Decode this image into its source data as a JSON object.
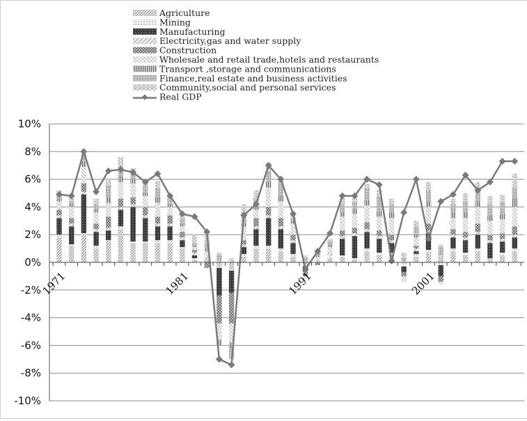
{
  "chart_data": {
    "type": "bar",
    "stacked": true,
    "title": "",
    "xlabel": "",
    "ylabel": "",
    "ylim": [
      -0.1,
      0.1
    ],
    "y_ticks": [
      "10%",
      "8%",
      "6%",
      "4%",
      "2%",
      "0%",
      "-2%",
      "-4%",
      "-6%",
      "-8%",
      "-10%"
    ],
    "x_tick_labels": [
      {
        "label": "1971",
        "year": 1971
      },
      {
        "label": "1981",
        "year": 1981
      },
      {
        "label": "1991",
        "year": 1991
      },
      {
        "label": "2001",
        "year": 2001
      }
    ],
    "years": [
      1971,
      1972,
      1973,
      1974,
      1975,
      1976,
      1977,
      1978,
      1979,
      1980,
      1981,
      1982,
      1983,
      1984,
      1985,
      1986,
      1987,
      1988,
      1989,
      1990,
      1991,
      1992,
      1993,
      1994,
      1995,
      1996,
      1997,
      1998,
      1999,
      2000,
      2001,
      2002,
      2003,
      2004,
      2005,
      2006,
      2007,
      2008
    ],
    "grid": true,
    "legend_position": "top",
    "series": [
      {
        "name": "Agriculture",
        "pattern": "diag-fine",
        "color": "#bdbdbd",
        "values": [
          0.018,
          0.012,
          0.02,
          0.01,
          0.015,
          0.024,
          0.014,
          0.014,
          0.014,
          0.014,
          0.01,
          0.002,
          0.002,
          -0.003,
          -0.005,
          0.004,
          0.01,
          0.01,
          0.008,
          0.004,
          -0.003,
          0.0,
          0.003,
          0.004,
          0.002,
          0.008,
          0.005,
          0.006,
          0.0,
          0.004,
          0.007,
          0.004,
          0.008,
          0.005,
          0.008,
          0.003,
          0.005,
          0.008
        ]
      },
      {
        "name": "Mining",
        "pattern": "dots-light",
        "color": "#d9d9d9",
        "values": [
          0.002,
          0.001,
          0.001,
          0.002,
          0.001,
          0.002,
          0.001,
          0.001,
          0.002,
          0.002,
          0.001,
          0.001,
          0.0,
          -0.001,
          -0.001,
          0.002,
          0.002,
          0.002,
          0.002,
          0.002,
          0.0,
          0.001,
          0.002,
          0.001,
          0.001,
          0.002,
          0.002,
          0.001,
          -0.003,
          0.002,
          0.002,
          -0.002,
          0.002,
          0.002,
          0.002,
          -0.001,
          0.002,
          0.002
        ]
      },
      {
        "name": "Manufacturing",
        "pattern": "dark-dots",
        "color": "#4d4d4d",
        "values": [
          0.012,
          0.013,
          0.028,
          0.01,
          0.007,
          0.012,
          0.025,
          0.017,
          0.01,
          0.01,
          0.005,
          0.002,
          0.0,
          -0.02,
          -0.016,
          0.005,
          0.012,
          0.02,
          0.014,
          0.008,
          -0.003,
          0.0,
          0.0,
          0.012,
          0.016,
          0.012,
          0.01,
          0.007,
          -0.004,
          0.002,
          0.012,
          -0.008,
          0.008,
          0.009,
          0.01,
          0.011,
          0.008,
          0.008
        ]
      },
      {
        "name": "Electricity,gas and water supply",
        "pattern": "diag-wide",
        "color": "#c8c8c8",
        "values": [
          0.002,
          0.002,
          0.002,
          0.002,
          0.002,
          0.002,
          0.002,
          0.002,
          0.002,
          0.002,
          0.002,
          0.002,
          0.002,
          0.001,
          0.001,
          0.002,
          0.002,
          0.002,
          0.002,
          0.002,
          0.001,
          0.001,
          0.002,
          0.002,
          0.002,
          0.002,
          0.002,
          0.002,
          0.001,
          0.002,
          0.002,
          0.001,
          0.002,
          0.002,
          0.002,
          0.002,
          0.002,
          0.002
        ]
      },
      {
        "name": "Construction",
        "pattern": "checker",
        "color": "#8a8a8a",
        "values": [
          0.004,
          0.004,
          0.006,
          0.004,
          0.008,
          0.006,
          0.005,
          0.006,
          0.005,
          0.006,
          0.004,
          0.002,
          -0.004,
          -0.02,
          -0.022,
          0.003,
          0.006,
          0.006,
          0.006,
          0.004,
          -0.004,
          -0.002,
          0.0,
          0.004,
          0.004,
          0.005,
          0.004,
          0.004,
          -0.003,
          0.002,
          0.005,
          -0.004,
          0.004,
          0.004,
          0.006,
          0.004,
          0.004,
          0.006
        ]
      },
      {
        "name": "Wholesale and retail trade,hotels and restaurants",
        "pattern": "diag-light",
        "color": "#cfcfcf",
        "values": [
          0.006,
          0.008,
          0.012,
          0.008,
          0.01,
          0.012,
          0.01,
          0.008,
          0.01,
          0.006,
          0.004,
          0.002,
          0.004,
          -0.012,
          -0.014,
          0.01,
          0.006,
          0.014,
          0.012,
          0.008,
          -0.002,
          0.002,
          0.004,
          0.01,
          0.01,
          0.012,
          0.01,
          0.012,
          -0.004,
          0.006,
          0.012,
          -0.002,
          0.008,
          0.01,
          0.012,
          0.01,
          0.01,
          0.014
        ]
      },
      {
        "name": "Transport ,storage and communications",
        "pattern": "vertical",
        "color": "#9a9a9a",
        "values": [
          0.002,
          0.002,
          0.004,
          0.002,
          0.004,
          0.004,
          0.003,
          0.002,
          0.004,
          0.002,
          0.002,
          0.001,
          0.002,
          -0.004,
          -0.004,
          0.002,
          0.002,
          0.004,
          0.004,
          0.002,
          0.0,
          0.001,
          0.002,
          0.003,
          0.004,
          0.004,
          0.004,
          0.004,
          0.0,
          0.002,
          0.004,
          0.0,
          0.004,
          0.004,
          0.004,
          0.004,
          0.004,
          0.006
        ]
      },
      {
        "name": "Finance,real estate and business activities",
        "pattern": "grey-dots",
        "color": "#a8a8a8",
        "values": [
          0.002,
          0.002,
          0.004,
          0.004,
          0.008,
          0.008,
          0.004,
          0.006,
          0.006,
          0.004,
          0.004,
          0.002,
          0.004,
          0.004,
          -0.008,
          0.008,
          0.006,
          0.008,
          0.01,
          0.002,
          0.002,
          0.002,
          0.002,
          0.006,
          0.004,
          0.008,
          0.01,
          0.006,
          0.002,
          0.006,
          0.008,
          0.006,
          0.006,
          0.008,
          0.008,
          0.008,
          0.008,
          0.008
        ]
      },
      {
        "name": "Community,social and personal services",
        "pattern": "dashes",
        "color": "#e0e0e0",
        "values": [
          0.004,
          0.004,
          0.004,
          0.004,
          0.006,
          0.006,
          0.004,
          0.004,
          0.006,
          0.002,
          0.004,
          0.006,
          0.006,
          0.002,
          0.002,
          0.006,
          0.006,
          0.006,
          0.004,
          0.004,
          0.002,
          0.002,
          0.002,
          0.004,
          0.004,
          0.004,
          0.006,
          0.004,
          0.004,
          0.004,
          0.006,
          0.002,
          0.004,
          0.006,
          0.006,
          0.006,
          0.006,
          0.01
        ]
      },
      {
        "name": "Real GDP",
        "type": "line",
        "color": "#7a7a7a",
        "values": [
          0.049,
          0.048,
          0.08,
          0.051,
          0.066,
          0.067,
          0.065,
          0.058,
          0.064,
          0.048,
          0.035,
          0.033,
          0.022,
          -0.07,
          -0.074,
          0.034,
          0.042,
          0.07,
          0.06,
          0.035,
          -0.005,
          0.008,
          0.021,
          0.048,
          0.048,
          0.06,
          0.056,
          0.001,
          0.036,
          0.06,
          0.017,
          0.044,
          0.049,
          0.063,
          0.052,
          0.058,
          0.073,
          0.073
        ]
      }
    ]
  }
}
